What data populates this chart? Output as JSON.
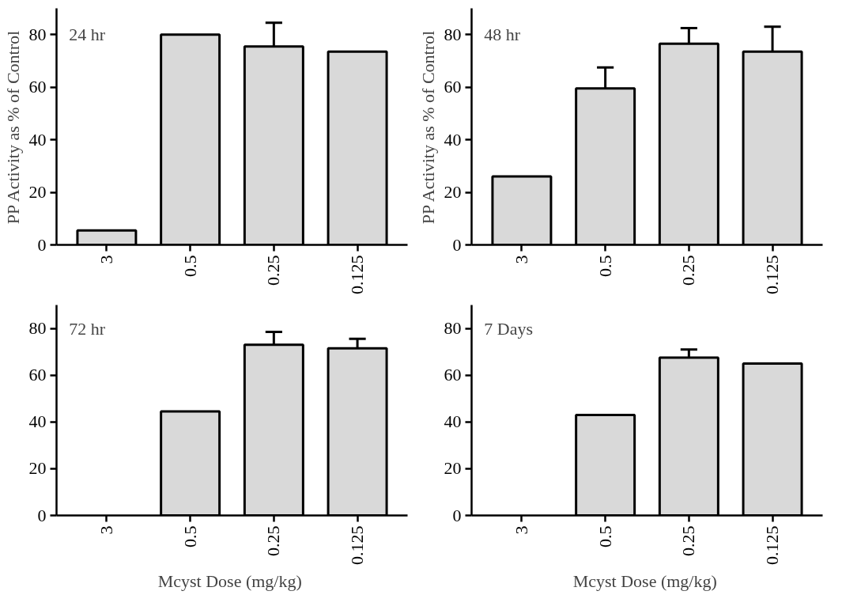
{
  "chart_data": [
    {
      "type": "bar",
      "categories": [
        "3",
        "0.5",
        "0.25",
        "0.125"
      ],
      "values": [
        5.5,
        80,
        75.5,
        73.5
      ],
      "errors": [
        null,
        null,
        9,
        null
      ],
      "color": "#d9d9d9",
      "ylim": [
        0,
        90
      ],
      "yticks": [
        0,
        20,
        40,
        60,
        80
      ],
      "ylabel": "PP Activity as % of Control",
      "annotations": [
        "24 hr"
      ],
      "grid": false
    },
    {
      "type": "bar",
      "categories": [
        "3",
        "0.5",
        "0.25",
        "0.125"
      ],
      "values": [
        26,
        59.5,
        76.5,
        73.5
      ],
      "errors": [
        null,
        8,
        6,
        9.5
      ],
      "color": "#d9d9d9",
      "ylim": [
        0,
        90
      ],
      "yticks": [
        0,
        20,
        40,
        60,
        80
      ],
      "ylabel": "PP Activity as % of Control",
      "annotations": [
        "48 hr"
      ],
      "grid": false
    },
    {
      "type": "bar",
      "categories": [
        "3",
        "0.5",
        "0.25",
        "0.125"
      ],
      "values": [
        null,
        44.5,
        73,
        71.5
      ],
      "errors": [
        null,
        null,
        5.5,
        4
      ],
      "color": "#d9d9d9",
      "ylim": [
        0,
        90
      ],
      "yticks": [
        0,
        20,
        40,
        60,
        80
      ],
      "xlabel": "Mcyst  Dose (mg/kg)",
      "annotations": [
        "72 hr"
      ],
      "grid": false
    },
    {
      "type": "bar",
      "categories": [
        "3",
        "0.5",
        "0.25",
        "0.125"
      ],
      "values": [
        null,
        43,
        67.5,
        65
      ],
      "errors": [
        null,
        null,
        3.5,
        null
      ],
      "color": "#d9d9d9",
      "ylim": [
        0,
        90
      ],
      "yticks": [
        0,
        20,
        40,
        60,
        80
      ],
      "xlabel": "Mcyst  Dose (mg/kg)",
      "annotations": [
        "7 Days"
      ],
      "grid": false
    }
  ]
}
